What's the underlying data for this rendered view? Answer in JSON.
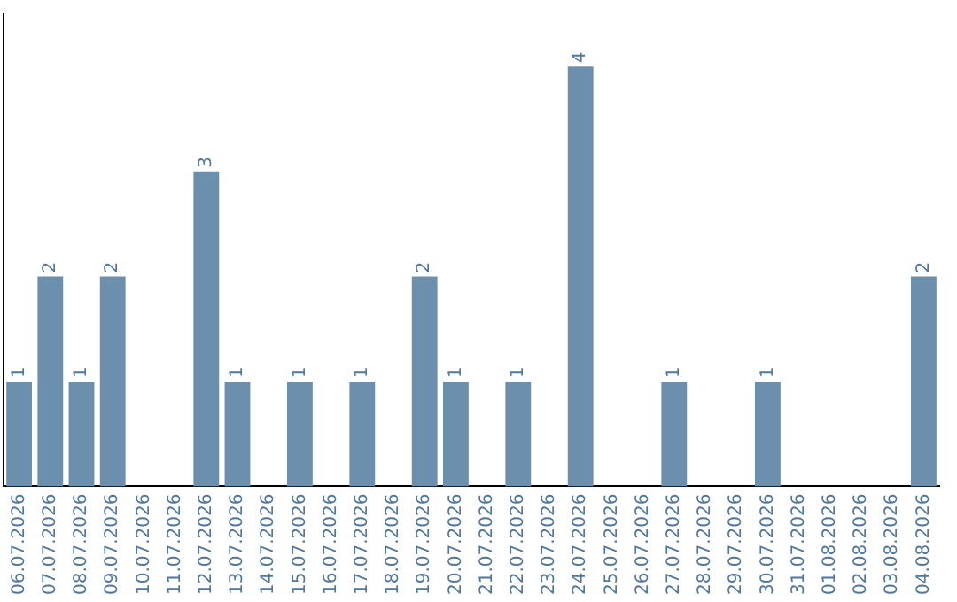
{
  "chart_data": {
    "type": "bar",
    "categories": [
      "06.07.2026",
      "07.07.2026",
      "08.07.2026",
      "09.07.2026",
      "10.07.2026",
      "11.07.2026",
      "12.07.2026",
      "13.07.2026",
      "14.07.2026",
      "15.07.2026",
      "16.07.2026",
      "17.07.2026",
      "18.07.2026",
      "19.07.2026",
      "20.07.2026",
      "21.07.2026",
      "22.07.2026",
      "23.07.2026",
      "24.07.2026",
      "25.07.2026",
      "26.07.2026",
      "27.07.2026",
      "28.07.2026",
      "29.07.2026",
      "30.07.2026",
      "31.07.2026",
      "01.08.2026",
      "02.08.2026",
      "03.08.2026",
      "04.08.2026"
    ],
    "values": [
      1,
      2,
      1,
      2,
      0,
      0,
      3,
      1,
      0,
      1,
      0,
      1,
      0,
      2,
      1,
      0,
      1,
      0,
      4,
      0,
      0,
      1,
      0,
      0,
      1,
      0,
      0,
      0,
      0,
      2
    ],
    "value_labels": [
      "1",
      "2",
      "1",
      "2",
      null,
      null,
      "3",
      "1",
      null,
      "1",
      null,
      "1",
      null,
      "2",
      "1",
      null,
      "1",
      null,
      "4",
      null,
      null,
      "1",
      null,
      null,
      "1",
      null,
      null,
      null,
      null,
      "2"
    ],
    "color": "#6d8fae",
    "tick_labels": "x",
    "grid": false,
    "legend": false
  }
}
